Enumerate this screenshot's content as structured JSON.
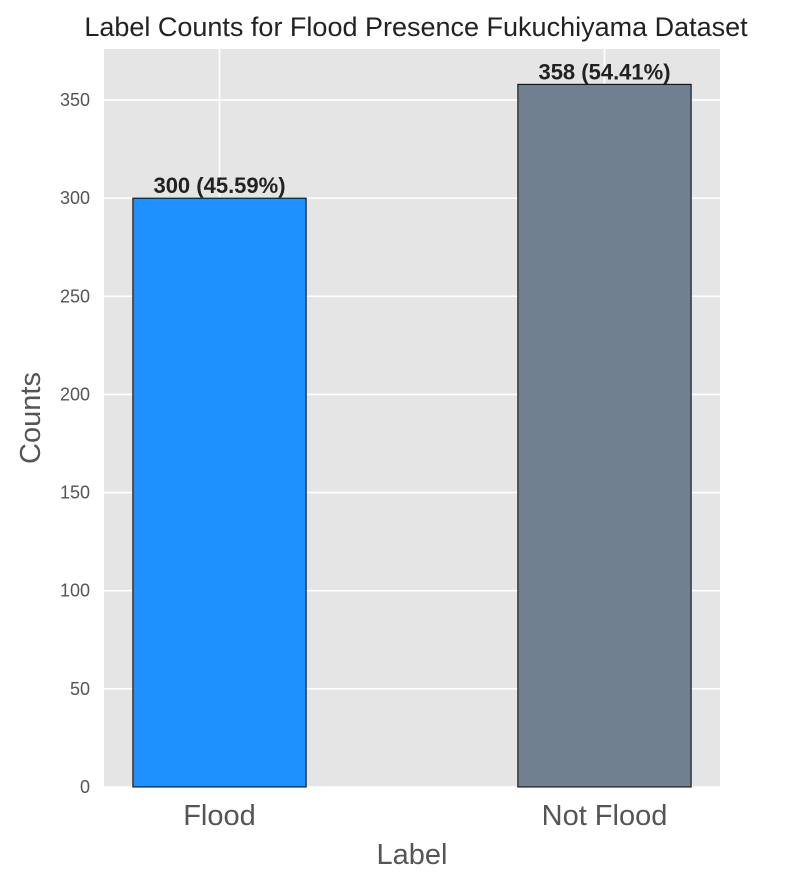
{
  "chart_data": {
    "type": "bar",
    "title": "Label Counts for Flood Presence Fukuchiyama Dataset",
    "xlabel": "Label",
    "ylabel": "Counts",
    "categories": [
      "Flood",
      "Not Flood"
    ],
    "values": [
      300,
      358
    ],
    "value_labels": [
      "300 (45.59%)",
      "358 (54.41%)"
    ],
    "colors": [
      "#1e90ff",
      "#708090"
    ],
    "ylim": [
      0,
      376
    ],
    "yticks": [
      0,
      50,
      100,
      150,
      200,
      250,
      300,
      350
    ],
    "grid": true,
    "background_color": "#e5e5e5",
    "grid_color": "#ffffff",
    "bar_edge_color": "#000000"
  }
}
